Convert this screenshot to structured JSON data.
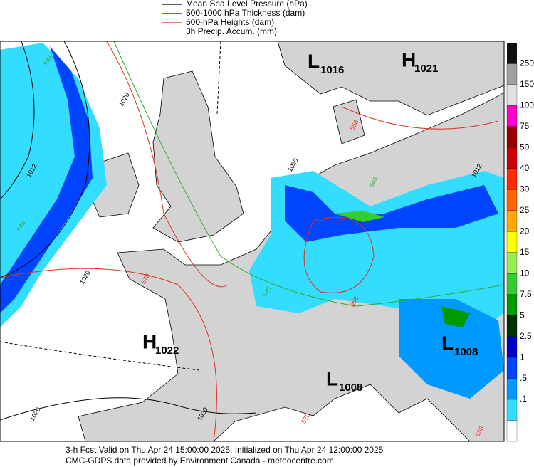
{
  "legend": [
    {
      "label": "Mean Sea Level Pressure (hPa)",
      "color": "#000000"
    },
    {
      "label": "500-1000 hPa Thickness (dam)",
      "color": "#0000cc"
    },
    {
      "label": "500-hPa Heights (dam)",
      "color": "#e0301e"
    },
    {
      "label": "3h Precip. Accum. (mm)",
      "color": null
    }
  ],
  "colorbar": [
    {
      "label": "250",
      "color": "#a0a0a0"
    },
    {
      "label": "150",
      "color": "#e0e0e0"
    },
    {
      "label": "100",
      "color": "#ff00cc"
    },
    {
      "label": "75",
      "color": "#990000"
    },
    {
      "label": "50",
      "color": "#cc0000"
    },
    {
      "label": "40",
      "color": "#ff2a00"
    },
    {
      "label": "30",
      "color": "#ff6600"
    },
    {
      "label": "25",
      "color": "#ffaa00"
    },
    {
      "label": "20",
      "color": "#ffff00"
    },
    {
      "label": "15",
      "color": "#99ee55"
    },
    {
      "label": "10",
      "color": "#33cc33"
    },
    {
      "label": "7.5",
      "color": "#009900"
    },
    {
      "label": "5",
      "color": "#003300"
    },
    {
      "label": "2.5",
      "color": "#0000cc"
    },
    {
      "label": "1",
      "color": "#0044ff"
    },
    {
      "label": ".5",
      "color": "#0099ff"
    },
    {
      "label": ".1",
      "color": "#33ddff"
    }
  ],
  "pressure_centers": [
    {
      "letter": "L",
      "value": "1016"
    },
    {
      "letter": "H",
      "value": "1021"
    },
    {
      "letter": "H",
      "value": "1022"
    },
    {
      "letter": "L",
      "value": "1008"
    },
    {
      "letter": "L",
      "value": "1008"
    }
  ],
  "contour_labels": [
    {
      "text": "546",
      "color": "#33aa33"
    },
    {
      "text": "1020",
      "color": "#000000"
    },
    {
      "text": "1012",
      "color": "#000000"
    },
    {
      "text": "546",
      "color": "#33aa33"
    },
    {
      "text": "1020",
      "color": "#000000"
    },
    {
      "text": "570",
      "color": "#e0301e"
    },
    {
      "text": "1020",
      "color": "#000000"
    },
    {
      "text": "558",
      "color": "#e0301e"
    },
    {
      "text": "546",
      "color": "#33aa33"
    },
    {
      "text": "1012",
      "color": "#000000"
    },
    {
      "text": "546",
      "color": "#33aa33"
    },
    {
      "text": "558",
      "color": "#e0301e"
    },
    {
      "text": "1020",
      "color": "#000000"
    },
    {
      "text": "1020",
      "color": "#000000"
    },
    {
      "text": "570",
      "color": "#e0301e"
    },
    {
      "text": "558",
      "color": "#e0301e"
    }
  ],
  "footer": [
    "3-h Fcst Valid on Thu Apr 24 15:00:00 2025, Initialized on Thu Apr 24 12:00:00 2025",
    "CMC-GDPS data provided by Environment Canada - meteocentre.com"
  ]
}
